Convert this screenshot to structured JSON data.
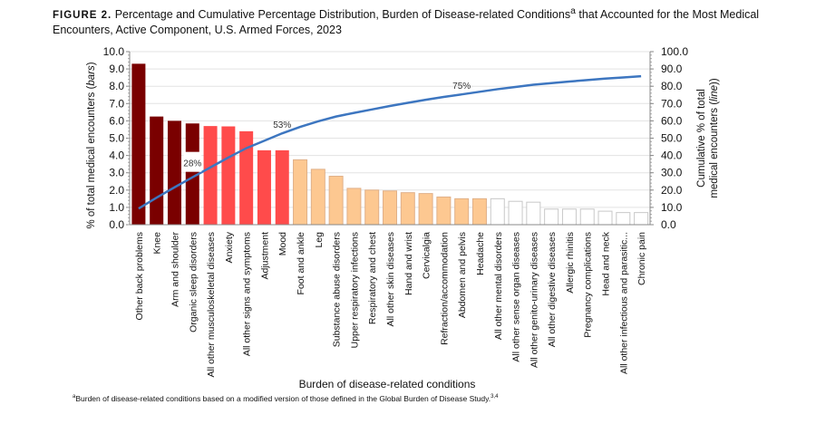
{
  "title": {
    "figure_label": "FIGURE 2.",
    "text": "Percentage and Cumulative Percentage Distribution, Burden of Disease-related Conditions",
    "sup": "a",
    "text2": " that Accounted for the Most Medical Encounters, Active Component, U.S. Armed Forces, 2023"
  },
  "footnote": {
    "sup": "a",
    "text": "Burden of disease-related conditions based on a modified version of those defined in the Global Burden of Disease Study.",
    "ref": "3,4"
  },
  "chart_data": {
    "type": "bar",
    "xlabel": "Burden of disease-related conditions",
    "ylabel": "% of total medical encounters (bars)",
    "ylabel_parts": [
      "% of total medical encounters (",
      "bars",
      ")"
    ],
    "y2label_lines": [
      "Cumulative % of total",
      "medical encounters (line)"
    ],
    "y2label_parts": [
      "medical encounters (",
      "line",
      ")"
    ],
    "ylim": [
      0,
      10
    ],
    "y2lim": [
      0,
      100
    ],
    "yticks": [
      "0.0",
      "1.0",
      "2.0",
      "3.0",
      "4.0",
      "5.0",
      "6.0",
      "7.0",
      "8.0",
      "9.0",
      "10.0"
    ],
    "y2ticks": [
      "0.0",
      "10.0",
      "20.0",
      "30.0",
      "40.0",
      "50.0",
      "60.0",
      "70.0",
      "80.0",
      "90.0",
      "100.0"
    ],
    "grid": true,
    "group_colors": [
      "#7a0000",
      "#ff4b4b",
      "#fdc891",
      "#ffffff"
    ],
    "line_color": "#3d76c0",
    "categories": [
      "Other back problems",
      "Knee",
      "Arm and shoulder",
      "Organic sleep disorders",
      "All other musculoskeletal diseases",
      "Anxiety",
      "All other signs and symptoms",
      "Adjustment",
      "Mood",
      "Foot and ankle",
      "Leg",
      "Substance abuse disorders",
      "Upper respiratory infections",
      "Respiratory and chest",
      "All other skin diseases",
      "Hand and wrist",
      "Cervicalgia",
      "Refraction/accommodation",
      "Abdomen and pelvis",
      "Headache",
      "All other mental disorders",
      "All other sense organ diseases",
      "All other genito-urinary diseases",
      "All other digestive diseases",
      "Allergic rhinitis",
      "Pregnancy complications",
      "Head and neck",
      "All other infectious and parasitic...",
      "Chronic pain"
    ],
    "values": [
      9.3,
      6.25,
      6.0,
      5.85,
      5.7,
      5.68,
      5.4,
      4.3,
      4.3,
      3.75,
      3.2,
      2.8,
      2.1,
      2.0,
      1.95,
      1.85,
      1.8,
      1.6,
      1.5,
      1.5,
      1.5,
      1.35,
      1.3,
      0.9,
      0.9,
      0.9,
      0.78,
      0.7,
      0.7
    ],
    "groups": [
      0,
      0,
      0,
      0,
      1,
      1,
      1,
      1,
      1,
      2,
      2,
      2,
      2,
      2,
      2,
      2,
      2,
      2,
      2,
      2,
      3,
      3,
      3,
      3,
      3,
      3,
      3,
      3,
      3
    ],
    "cumulative": [
      9.3,
      15.6,
      21.6,
      27.4,
      33.1,
      38.8,
      44.2,
      48.5,
      52.8,
      56.5,
      59.7,
      62.5,
      64.6,
      66.6,
      68.6,
      70.4,
      72.2,
      73.8,
      75.3,
      76.8,
      78.3,
      79.6,
      80.9,
      81.8,
      82.7,
      83.6,
      84.4,
      85.1,
      85.8
    ],
    "annotations": [
      {
        "index": 3,
        "label": "28%"
      },
      {
        "index": 8,
        "label": "53%"
      },
      {
        "index": 18,
        "label": "75%"
      }
    ]
  }
}
